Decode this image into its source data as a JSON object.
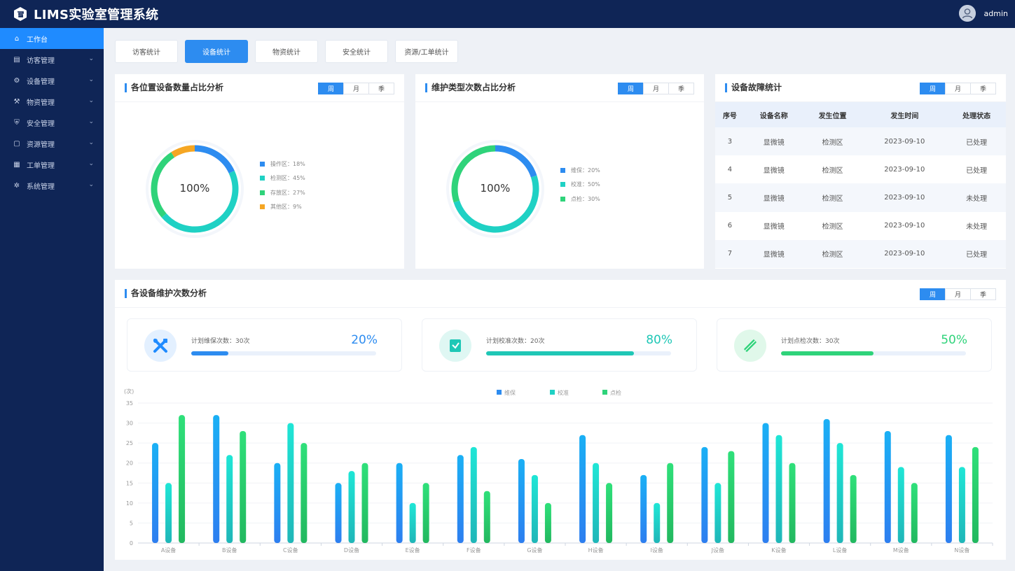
{
  "header": {
    "title": "LIMS实验室管理系统",
    "user": "admin"
  },
  "sidebar": [
    {
      "label": "工作台",
      "icon": "home-icon",
      "glyph": "⌂",
      "active": true
    },
    {
      "label": "访客管理",
      "icon": "visitor-icon",
      "glyph": "▤"
    },
    {
      "label": "设备管理",
      "icon": "device-icon",
      "glyph": "⚙"
    },
    {
      "label": "物资管理",
      "icon": "wrench-icon",
      "glyph": "⚒"
    },
    {
      "label": "安全管理",
      "icon": "safety-icon",
      "glyph": "⛨"
    },
    {
      "label": "资源管理",
      "icon": "resource-icon",
      "glyph": "▢"
    },
    {
      "label": "工单管理",
      "icon": "ticket-icon",
      "glyph": "▦"
    },
    {
      "label": "系统管理",
      "icon": "settings-icon",
      "glyph": "✲"
    }
  ],
  "tabs": [
    "访客统计",
    "设备统计",
    "物资统计",
    "安全统计",
    "资源/工单统计"
  ],
  "active_tab": 1,
  "period": {
    "week": "周",
    "month": "月",
    "season": "季"
  },
  "location_panel": {
    "title": "各位置设备数量占比分析",
    "center": "100%",
    "slices": [
      {
        "label": "操作区：18%",
        "value": 18,
        "color": "#2d8cf0"
      },
      {
        "label": "检测区：45%",
        "value": 45,
        "color": "#1fd1c4"
      },
      {
        "label": "存放区：27%",
        "value": 27,
        "color": "#2fd37a"
      },
      {
        "label": "其他区：9%",
        "value": 9,
        "color": "#f5a623"
      }
    ]
  },
  "maint_type_panel": {
    "title": "维护类型次数占比分析",
    "center": "100%",
    "slices": [
      {
        "label": "维保：20%",
        "value": 20,
        "color": "#2d8cf0"
      },
      {
        "label": "校准：50%",
        "value": 50,
        "color": "#1fd1c4"
      },
      {
        "label": "点检：30%",
        "value": 30,
        "color": "#2fd37a"
      }
    ]
  },
  "fault_panel": {
    "title": "设备故障统计",
    "columns": [
      "序号",
      "设备名称",
      "发生位置",
      "发生时间",
      "处理状态"
    ],
    "rows": [
      {
        "no": "3",
        "name": "显微镜",
        "loc": "检测区",
        "time": "2023-09-10",
        "status": "已处理",
        "done": true
      },
      {
        "no": "4",
        "name": "显微镜",
        "loc": "检测区",
        "time": "2023-09-10",
        "status": "已处理",
        "done": true
      },
      {
        "no": "5",
        "name": "显微镜",
        "loc": "检测区",
        "time": "2023-09-10",
        "status": "未处理",
        "done": false
      },
      {
        "no": "6",
        "name": "显微镜",
        "loc": "检测区",
        "time": "2023-09-10",
        "status": "未处理",
        "done": false
      },
      {
        "no": "7",
        "name": "显微镜",
        "loc": "检测区",
        "time": "2023-09-10",
        "status": "已处理",
        "done": true
      }
    ]
  },
  "maint_panel": {
    "title": "各设备维护次数分析",
    "stats": [
      {
        "label": "计划维保次数：30次",
        "pct": "20%",
        "progress": 0.2,
        "color": "#2d8cf0",
        "icon": "tools-icon"
      },
      {
        "label": "计划校准次数：20次",
        "pct": "80%",
        "progress": 0.8,
        "color": "#1fc7b6",
        "icon": "calibrate-icon"
      },
      {
        "label": "计划点检次数：30次",
        "pct": "50%",
        "progress": 0.5,
        "color": "#2fd37a",
        "icon": "ruler-icon"
      }
    ]
  },
  "chart_data": {
    "type": "bar",
    "unit_label": "(次)",
    "categories": [
      "A设备",
      "B设备",
      "C设备",
      "D设备",
      "E设备",
      "F设备",
      "G设备",
      "H设备",
      "I设备",
      "J设备",
      "K设备",
      "L设备",
      "M设备",
      "N设备"
    ],
    "series": [
      {
        "name": "维保",
        "color": "#2d8cf0",
        "values": [
          25,
          32,
          20,
          15,
          20,
          22,
          21,
          27,
          17,
          24,
          30,
          31,
          28,
          27
        ]
      },
      {
        "name": "校准",
        "color": "#1fd1c4",
        "values": [
          15,
          22,
          30,
          18,
          10,
          24,
          17,
          20,
          10,
          15,
          27,
          25,
          19,
          19
        ]
      },
      {
        "name": "点检",
        "color": "#2fd37a",
        "values": [
          32,
          28,
          25,
          20,
          15,
          13,
          10,
          15,
          20,
          23,
          20,
          17,
          15,
          24
        ]
      }
    ],
    "ylim": [
      0,
      35
    ],
    "yticks": [
      0,
      5,
      10,
      15,
      20,
      25,
      30,
      35
    ]
  }
}
